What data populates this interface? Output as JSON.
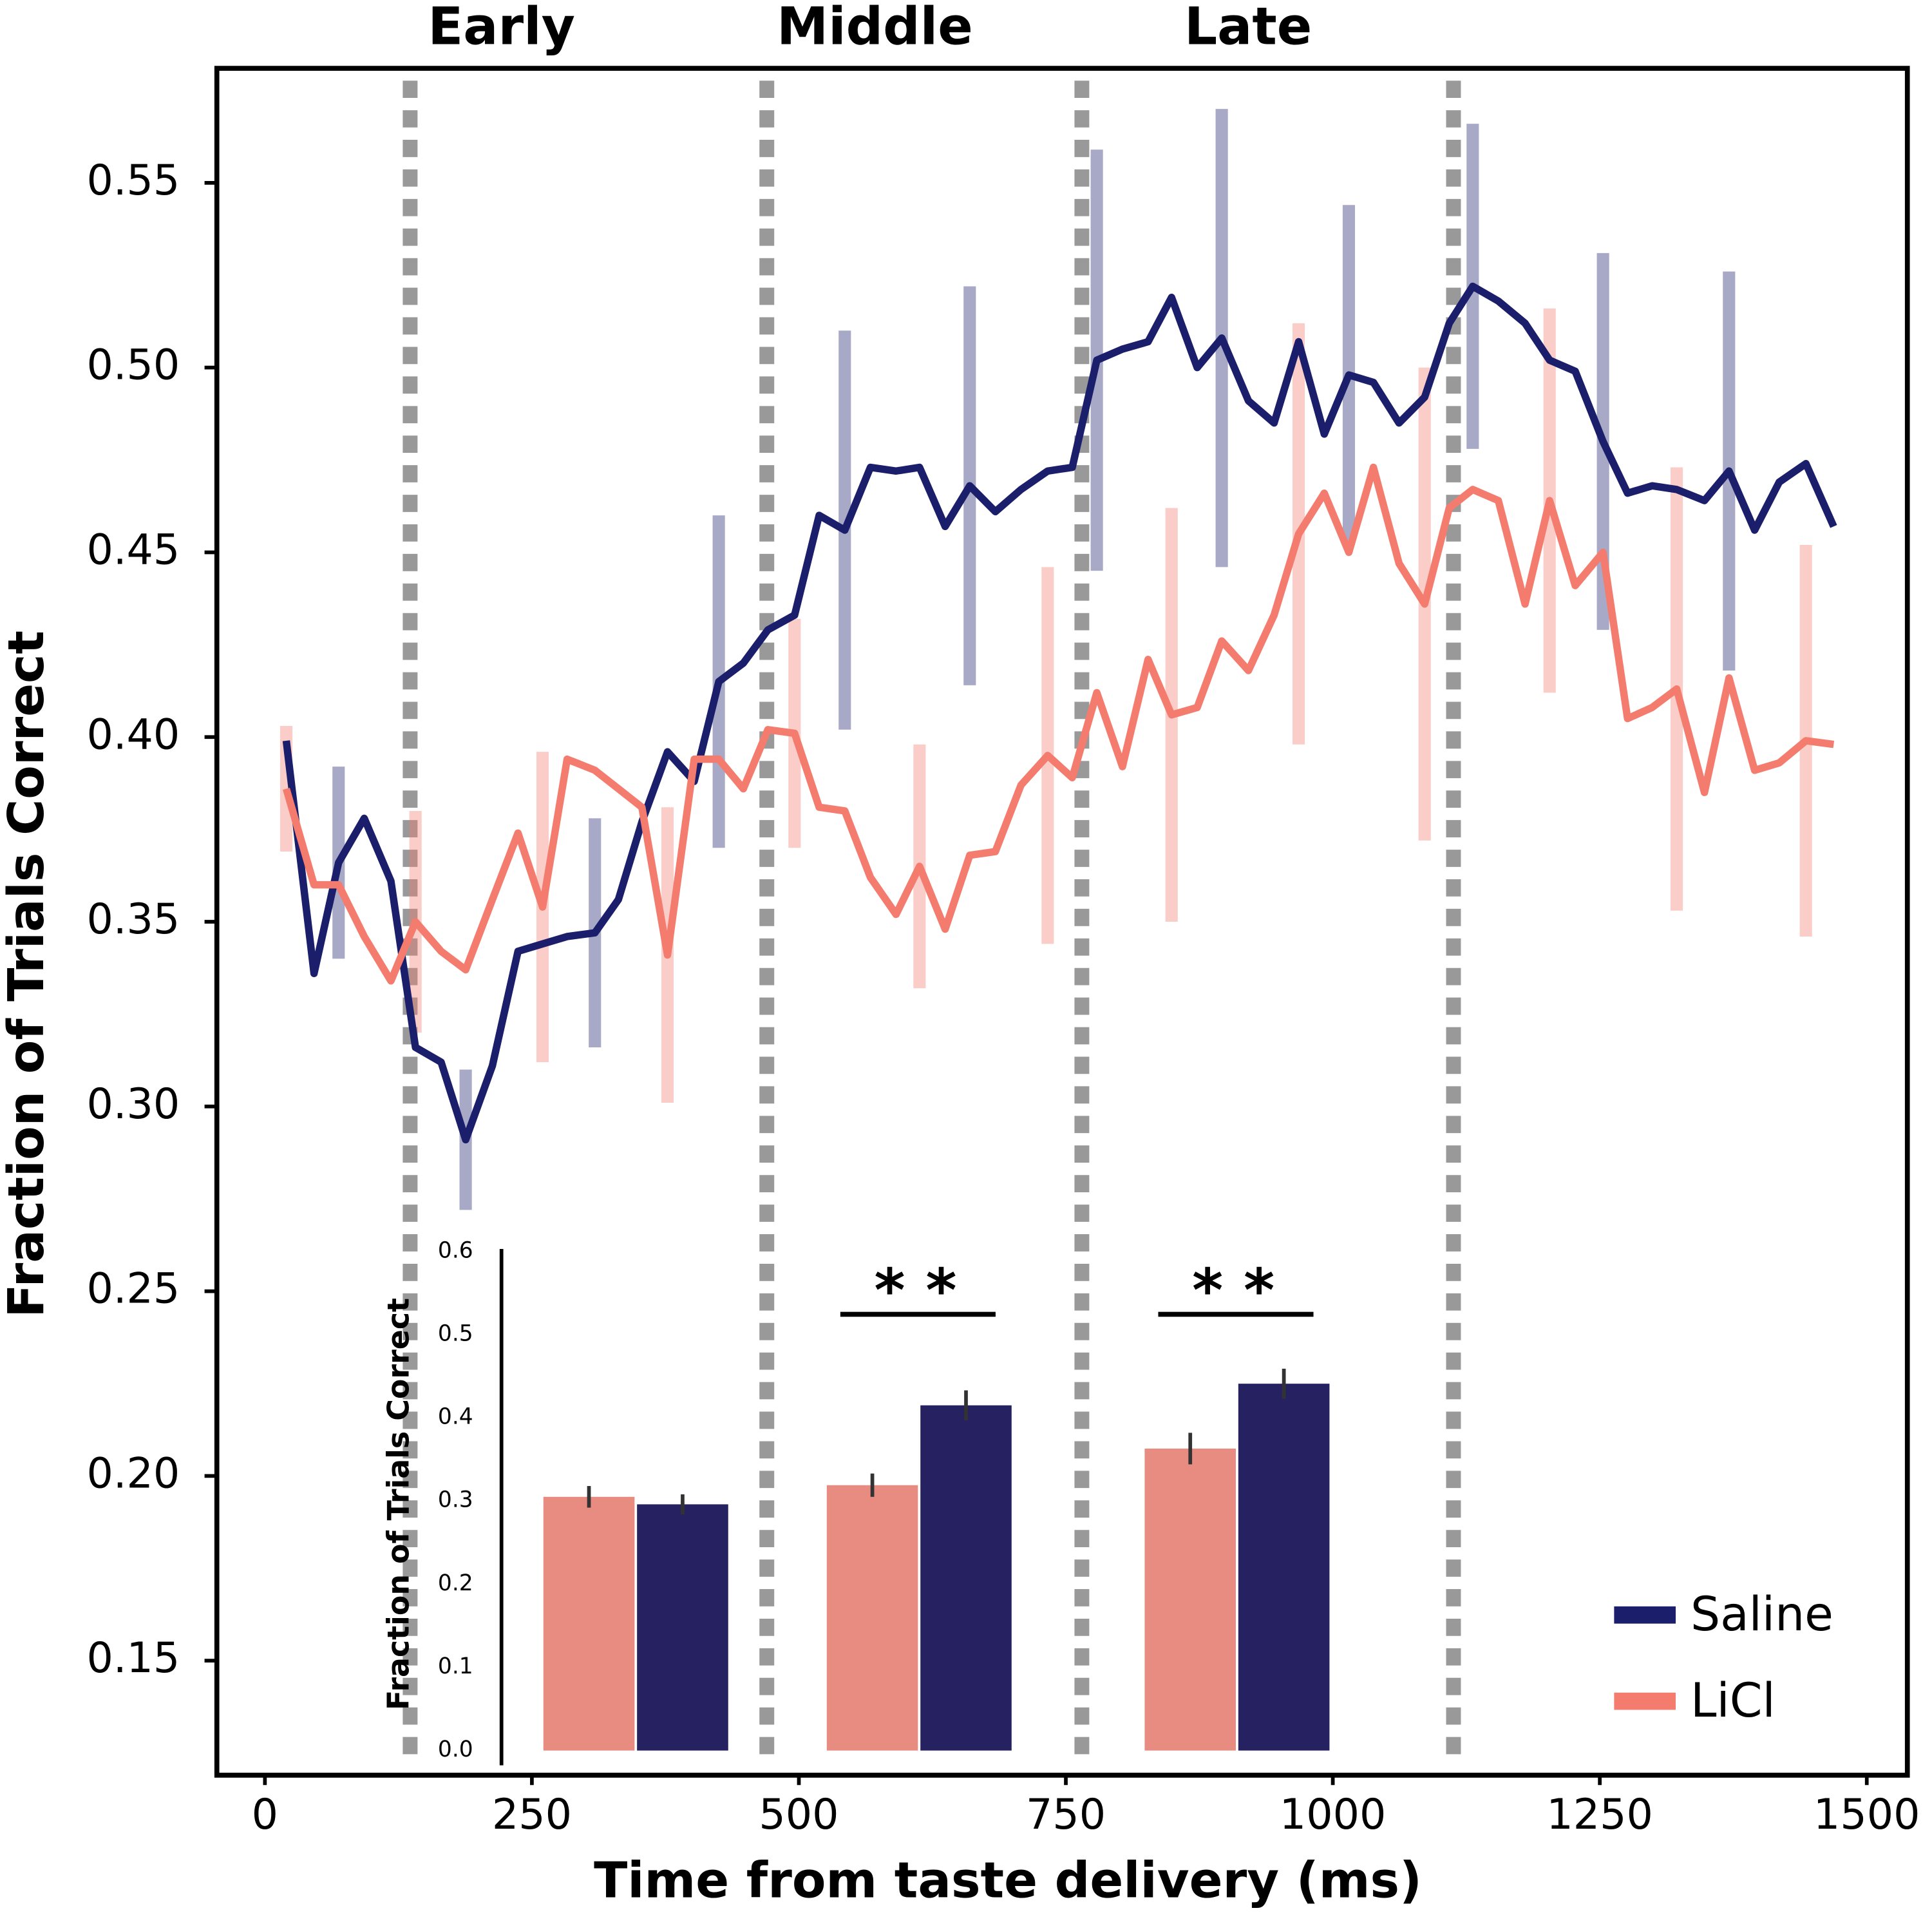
{
  "chart_data": [
    {
      "type": "line",
      "period_labels": [
        "Early",
        "Middle",
        "Late"
      ],
      "period_boundaries": [
        136,
        470,
        765,
        1113
      ],
      "xlabel": "Time from taste delivery (ms)",
      "ylabel": "Fraction of Trials Correct",
      "x": [
        20,
        46,
        69,
        93,
        118,
        141,
        165,
        188,
        213,
        237,
        260,
        283,
        309,
        331,
        353,
        377,
        402,
        425,
        448,
        471,
        496,
        519,
        543,
        567,
        591,
        613,
        637,
        660,
        684,
        708,
        733,
        756,
        779,
        803,
        827,
        849,
        873,
        896,
        921,
        945,
        968,
        992,
        1015,
        1038,
        1062,
        1086,
        1109,
        1131,
        1155,
        1180,
        1203,
        1227,
        1253,
        1276,
        1299,
        1322,
        1348,
        1371,
        1395,
        1418,
        1443,
        1469
      ],
      "series": [
        {
          "name": "Saline",
          "color": "#1b1e6b",
          "values": [
            0.399,
            0.336,
            0.366,
            0.378,
            0.361,
            0.316,
            0.312,
            0.291,
            0.311,
            0.342,
            0.344,
            0.346,
            0.347,
            0.356,
            0.377,
            0.396,
            0.388,
            0.415,
            0.42,
            0.429,
            0.433,
            0.46,
            0.456,
            0.473,
            0.472,
            0.473,
            0.457,
            0.468,
            0.461,
            0.467,
            0.472,
            0.473,
            0.502,
            0.505,
            0.507,
            0.519,
            0.5,
            0.508,
            0.491,
            0.485,
            0.507,
            0.482,
            0.498,
            0.496,
            0.485,
            0.492,
            0.512,
            0.522,
            0.518,
            0.512,
            0.502,
            0.499,
            0.48,
            0.466,
            0.468,
            0.467,
            0.464,
            0.472,
            0.456,
            0.469,
            0.474,
            0.457
          ],
          "errors": [
            null,
            null,
            0.026,
            null,
            null,
            null,
            null,
            0.019,
            null,
            null,
            null,
            null,
            0.031,
            null,
            null,
            null,
            null,
            0.045,
            null,
            null,
            null,
            null,
            0.054,
            null,
            null,
            null,
            null,
            0.054,
            null,
            null,
            null,
            null,
            0.057,
            null,
            null,
            null,
            null,
            0.062,
            null,
            null,
            null,
            null,
            0.046,
            null,
            null,
            null,
            null,
            0.044,
            null,
            null,
            null,
            null,
            0.051,
            null,
            null,
            null,
            null,
            0.054,
            null,
            null,
            null,
            null
          ]
        },
        {
          "name": "LiCl",
          "color": "#f47c6e",
          "values": [
            0.386,
            0.36,
            0.36,
            0.346,
            0.334,
            0.35,
            0.342,
            0.337,
            0.356,
            0.374,
            0.354,
            0.394,
            0.391,
            0.386,
            0.381,
            0.341,
            0.394,
            0.394,
            0.386,
            0.402,
            0.401,
            0.381,
            0.38,
            0.362,
            0.352,
            0.365,
            0.348,
            0.368,
            0.369,
            0.387,
            0.395,
            0.389,
            0.412,
            0.392,
            0.421,
            0.406,
            0.408,
            0.426,
            0.418,
            0.433,
            0.455,
            0.466,
            0.45,
            0.473,
            0.447,
            0.436,
            0.462,
            0.467,
            0.464,
            0.436,
            0.464,
            0.441,
            0.45,
            0.405,
            0.408,
            0.413,
            0.385,
            0.416,
            0.391,
            0.393,
            0.399,
            0.398
          ],
          "errors": [
            0.017,
            null,
            null,
            null,
            null,
            0.03,
            null,
            null,
            null,
            null,
            0.042,
            null,
            null,
            null,
            null,
            0.04,
            null,
            null,
            null,
            null,
            0.031,
            null,
            null,
            null,
            null,
            0.033,
            null,
            null,
            null,
            null,
            0.051,
            null,
            null,
            null,
            null,
            0.056,
            null,
            null,
            null,
            null,
            0.057,
            null,
            null,
            null,
            null,
            0.064,
            null,
            null,
            null,
            null,
            0.052,
            null,
            null,
            null,
            null,
            0.06,
            null,
            null,
            null,
            null,
            0.053,
            null
          ]
        }
      ],
      "xlim": [
        -45,
        1538
      ],
      "ylim": [
        0.119,
        0.581
      ],
      "xticks": [
        0,
        250,
        500,
        750,
        1000,
        1250,
        1500
      ],
      "yticks": [
        0.15,
        {
          "value": 0.2,
          "label": "0.20"
        },
        0.25,
        {
          "value": 0.3,
          "label": "0.30"
        },
        0.35,
        {
          "value": 0.4,
          "label": "0.40"
        },
        0.45,
        {
          "value": 0.5,
          "label": "0.50"
        },
        0.55
      ],
      "legend": "lower right"
    },
    {
      "type": "bar",
      "ylabel": "Fraction of Trials Correct",
      "categories": [
        null,
        null,
        null
      ],
      "series": [
        {
          "color": "#e88c82",
          "values": [
            0.305,
            0.319,
            0.363
          ],
          "errors": [
            0.013,
            0.014,
            0.019
          ]
        },
        {
          "color": "#262261",
          "values": [
            0.296,
            0.415,
            0.441
          ],
          "errors": [
            0.012,
            0.018,
            0.018
          ]
        }
      ],
      "significance": [
        null,
        "* *",
        "* *"
      ],
      "ylim": [
        0,
        0.6
      ],
      "yticks": [
        {
          "value": 0,
          "label": "0.0"
        },
        0.1,
        0.2,
        0.3,
        0.4,
        0.5,
        0.6
      ]
    }
  ]
}
